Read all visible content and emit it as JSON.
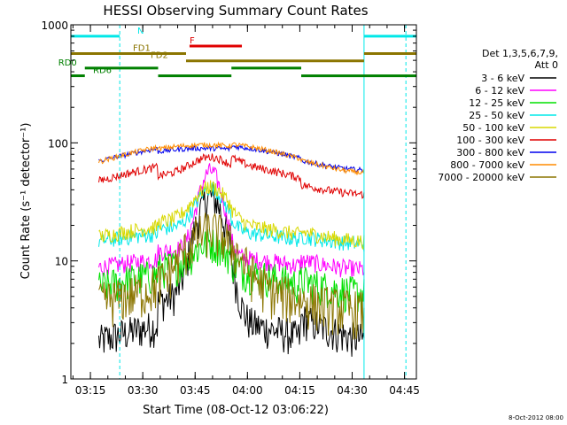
{
  "chart_data": {
    "type": "line",
    "title": "HESSI Observing Summary Count Rates",
    "xlabel": "Start Time (08-Oct-12 03:06:22)",
    "ylabel": "Count Rate (s⁻¹ detector⁻¹)",
    "yscale": "log",
    "ylim": [
      1,
      1000
    ],
    "xlim_minutes": [
      3.0,
      102.0
    ],
    "x_ticks": [
      {
        "m": 8.6,
        "label": "03:15"
      },
      {
        "m": 23.6,
        "label": "03:30"
      },
      {
        "m": 38.6,
        "label": "03:45"
      },
      {
        "m": 53.6,
        "label": "04:00"
      },
      {
        "m": 68.6,
        "label": "04:15"
      },
      {
        "m": 83.6,
        "label": "04:30"
      },
      {
        "m": 98.6,
        "label": "04:45"
      }
    ],
    "y_ticks": [
      {
        "v": 1,
        "label": "1"
      },
      {
        "v": 10,
        "label": "10"
      },
      {
        "v": 100,
        "label": "100"
      },
      {
        "v": 1000,
        "label": "1000"
      }
    ],
    "legend_header": [
      "Det 1,3,5,6,7,9,",
      "Att 0"
    ],
    "series": [
      {
        "name": "3 - 6 keV",
        "color": "#000000"
      },
      {
        "name": "6 - 12 keV",
        "color": "#ff00ff"
      },
      {
        "name": "12 - 25 keV",
        "color": "#00e000"
      },
      {
        "name": "25 - 50 keV",
        "color": "#00e8e8"
      },
      {
        "name": "50 - 100 keV",
        "color": "#d8d800"
      },
      {
        "name": "100 - 300 keV",
        "color": "#e00000"
      },
      {
        "name": "300 - 800 keV",
        "color": "#0000ee"
      },
      {
        "name": "800 - 7000 keV",
        "color": "#ff8c00"
      },
      {
        "name": "7000 - 20000 keV",
        "color": "#8b7500"
      }
    ],
    "state_bars": [
      {
        "label": "N",
        "color": "#00e8e8",
        "y": 800,
        "segments": [
          [
            3,
            17
          ],
          [
            87,
            102
          ]
        ]
      },
      {
        "label": "F",
        "color": "#e00000",
        "y": 660,
        "segments": [
          [
            37,
            52
          ]
        ]
      },
      {
        "label": "FD1",
        "color": "#8b7500",
        "y": 570,
        "segments": [
          [
            3,
            36
          ],
          [
            87,
            102
          ]
        ]
      },
      {
        "label": "FD2",
        "color": "#8b7500",
        "y": 495,
        "segments": [
          [
            36,
            87
          ]
        ]
      },
      {
        "label": "RD0",
        "color": "#008000",
        "y": 430,
        "segments": [
          [
            7,
            28
          ],
          [
            49,
            69
          ]
        ]
      },
      {
        "label": "RD6",
        "color": "#008000",
        "y": 370,
        "segments": [
          [
            3,
            7
          ],
          [
            28,
            49
          ],
          [
            69,
            102
          ]
        ]
      }
    ],
    "night_boundaries_min": [
      3.0,
      87.0
    ],
    "saa_boundaries_min": [
      17.0,
      99.0
    ],
    "footer_stamp": "8-Oct-2012 08:00"
  }
}
